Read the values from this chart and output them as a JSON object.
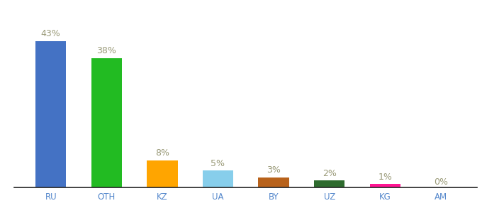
{
  "categories": [
    "RU",
    "OTH",
    "KZ",
    "UA",
    "BY",
    "UZ",
    "KG",
    "AM"
  ],
  "values": [
    43,
    38,
    8,
    5,
    3,
    2,
    1,
    0
  ],
  "labels": [
    "43%",
    "38%",
    "8%",
    "5%",
    "3%",
    "2%",
    "1%",
    "0%"
  ],
  "colors": [
    "#4472C4",
    "#22BB22",
    "#FFA500",
    "#87CEEB",
    "#B8621B",
    "#2E6B2E",
    "#FF1493",
    "#AAAAAA"
  ],
  "ylim": [
    0,
    50
  ],
  "background_color": "#ffffff",
  "label_color": "#999977",
  "label_fontsize": 9,
  "tick_color": "#5588CC",
  "tick_fontsize": 8.5,
  "bar_width": 0.55,
  "spine_color": "#222222"
}
